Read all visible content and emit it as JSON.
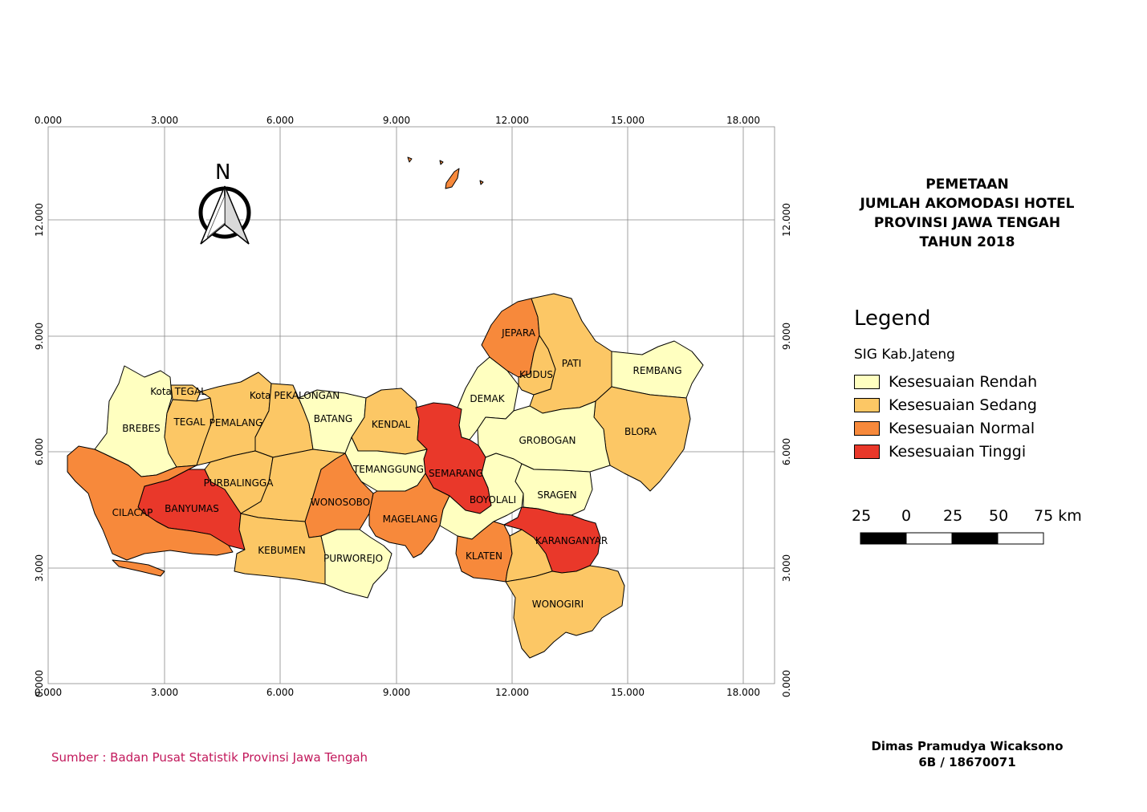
{
  "title": {
    "line1": "PEMETAAN",
    "line2": "JUMLAH AKOMODASI HOTEL",
    "line3": "PROVINSI JAWA TENGAH",
    "line4": "TAHUN 2018"
  },
  "legend": {
    "heading": "Legend",
    "layer": "SIG Kab.Jateng",
    "items": [
      {
        "label": "Kesesuaian Rendah",
        "color": "#ffffc0"
      },
      {
        "label": "Kesesuaian Sedang",
        "color": "#fcc765"
      },
      {
        "label": "Kesesuaian Normal",
        "color": "#f7893b"
      },
      {
        "label": "Kesesuaian Tinggi",
        "color": "#e9382a"
      }
    ]
  },
  "scale_bar": {
    "labels": [
      "25",
      "0",
      "25",
      "50",
      "75 km"
    ]
  },
  "north_arrow": {
    "label": "N",
    "icon": "compass-icon"
  },
  "grid": {
    "x_labels": [
      "0.000",
      "3.000",
      "6.000",
      "9.000",
      "12.000",
      "15.000",
      "18.000"
    ],
    "y_labels": [
      "0.000",
      "3.000",
      "6.000",
      "9.000",
      "12.000"
    ]
  },
  "regions": [
    {
      "name": "BREBES",
      "class": "Kesesuaian Rendah"
    },
    {
      "name": "Kota TEGAL",
      "class": "Kesesuaian Sedang"
    },
    {
      "name": "TEGAL",
      "class": "Kesesuaian Sedang"
    },
    {
      "name": "PEMALANG",
      "class": "Kesesuaian Sedang"
    },
    {
      "name": "Kota PEKALONGAN",
      "class": "Kesesuaian Sedang"
    },
    {
      "name": "BATANG",
      "class": "Kesesuaian Rendah"
    },
    {
      "name": "KENDAL",
      "class": "Kesesuaian Sedang"
    },
    {
      "name": "DEMAK",
      "class": "Kesesuaian Rendah"
    },
    {
      "name": "JEPARA",
      "class": "Kesesuaian Normal"
    },
    {
      "name": "KUDUS",
      "class": "Kesesuaian Sedang"
    },
    {
      "name": "PATI",
      "class": "Kesesuaian Sedang"
    },
    {
      "name": "REMBANG",
      "class": "Kesesuaian Rendah"
    },
    {
      "name": "BLORA",
      "class": "Kesesuaian Sedang"
    },
    {
      "name": "GROBOGAN",
      "class": "Kesesuaian Rendah"
    },
    {
      "name": "SEMARANG",
      "class": "Kesesuaian Tinggi"
    },
    {
      "name": "TEMANGGUNG",
      "class": "Kesesuaian Rendah"
    },
    {
      "name": "WONOSOBO",
      "class": "Kesesuaian Normal"
    },
    {
      "name": "PURBALINGGA",
      "class": "Kesesuaian Sedang"
    },
    {
      "name": "BANYUMAS",
      "class": "Kesesuaian Tinggi"
    },
    {
      "name": "CILACAP",
      "class": "Kesesuaian Normal"
    },
    {
      "name": "KEBUMEN",
      "class": "Kesesuaian Sedang"
    },
    {
      "name": "PURWOREJO",
      "class": "Kesesuaian Rendah"
    },
    {
      "name": "MAGELANG",
      "class": "Kesesuaian Normal"
    },
    {
      "name": "BOYOLALI",
      "class": "Kesesuaian Rendah"
    },
    {
      "name": "SRAGEN",
      "class": "Kesesuaian Rendah"
    },
    {
      "name": "KARANGANYAR",
      "class": "Kesesuaian Tinggi"
    },
    {
      "name": "KLATEN",
      "class": "Kesesuaian Normal"
    },
    {
      "name": "WONOGIRI",
      "class": "Kesesuaian Sedang"
    }
  ],
  "author": {
    "name": "Dimas Pramudya Wicaksono",
    "id": "6B / 18670071"
  },
  "source": "Sumber : Badan Pusat Statistik Provinsi Jawa Tengah"
}
